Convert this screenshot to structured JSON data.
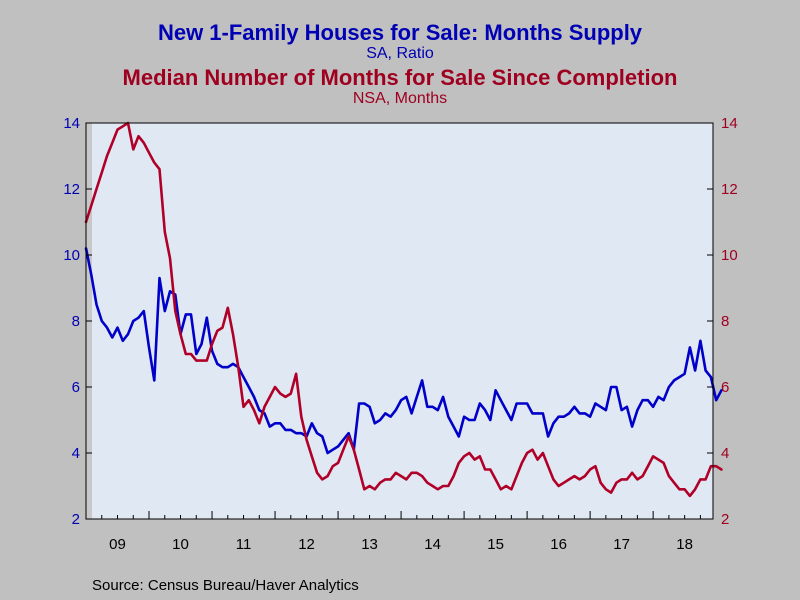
{
  "chart_data": {
    "type": "line",
    "titles": [
      {
        "text": "New 1-Family Houses for Sale: Months Supply",
        "color": "#0000b4"
      },
      {
        "text": "SA, Ratio",
        "color": "#0000b4"
      },
      {
        "text": "Median Number of Months for Sale Since Completion",
        "color": "#a00020"
      },
      {
        "text": "NSA, Months",
        "color": "#a00020"
      }
    ],
    "source": "Source:  Census Bureau/Haver Analytics",
    "x_start": 2009.0,
    "x_range": [
      2009.0,
      2018.95
    ],
    "x_tick_labels": [
      "09",
      "10",
      "11",
      "12",
      "13",
      "14",
      "15",
      "16",
      "17",
      "18"
    ],
    "y_left": {
      "range": [
        2,
        14
      ],
      "ticks": [
        2,
        4,
        6,
        8,
        10,
        12,
        14
      ],
      "color": "#0000b4"
    },
    "y_right": {
      "range": [
        2,
        14
      ],
      "ticks": [
        2,
        4,
        6,
        8,
        10,
        12,
        14
      ],
      "color": "#a00020"
    },
    "grid": false,
    "colors": {
      "plot_bg": "#e0e8f4",
      "recession_shade": "#c8c8c8",
      "frame": "#000000"
    },
    "series": [
      {
        "color": "#0000c8",
        "axis": "left",
        "frequency": "monthly",
        "values": [
          10.2,
          9.4,
          8.5,
          8.0,
          7.8,
          7.5,
          7.8,
          7.4,
          7.6,
          8.0,
          8.1,
          8.3,
          7.2,
          6.2,
          9.3,
          8.3,
          8.9,
          8.8,
          7.6,
          8.2,
          8.2,
          7.0,
          7.3,
          8.1,
          7.1,
          6.7,
          6.6,
          6.6,
          6.7,
          6.6,
          6.3,
          6.0,
          5.7,
          5.3,
          5.2,
          4.8,
          4.9,
          4.9,
          4.7,
          4.7,
          4.6,
          4.6,
          4.5,
          4.9,
          4.6,
          4.5,
          4.0,
          4.1,
          4.2,
          4.4,
          4.6,
          4.1,
          5.5,
          5.5,
          5.4,
          4.9,
          5.0,
          5.2,
          5.1,
          5.3,
          5.6,
          5.7,
          5.2,
          5.7,
          6.2,
          5.4,
          5.4,
          5.3,
          5.7,
          5.1,
          4.8,
          4.5,
          5.1,
          5.0,
          5.0,
          5.5,
          5.3,
          5.0,
          5.9,
          5.6,
          5.3,
          5.0,
          5.5,
          5.5,
          5.5,
          5.2,
          5.2,
          5.2,
          4.5,
          4.9,
          5.1,
          5.1,
          5.2,
          5.4,
          5.2,
          5.2,
          5.1,
          5.5,
          5.4,
          5.3,
          6.0,
          6.0,
          5.3,
          5.4,
          4.8,
          5.3,
          5.6,
          5.6,
          5.4,
          5.7,
          5.6,
          6.0,
          6.2,
          6.3,
          6.4,
          7.2,
          6.5,
          7.4,
          6.5,
          6.3,
          5.6,
          5.9
        ]
      },
      {
        "color": "#b00028",
        "axis": "right",
        "frequency": "monthly",
        "values": [
          11.0,
          11.5,
          12.0,
          12.5,
          13.0,
          13.4,
          13.8,
          13.9,
          14.0,
          13.2,
          13.6,
          13.4,
          13.1,
          12.8,
          12.6,
          10.7,
          9.9,
          8.3,
          7.6,
          7.0,
          7.0,
          6.8,
          6.8,
          6.8,
          7.3,
          7.7,
          7.8,
          8.4,
          7.6,
          6.6,
          5.4,
          5.6,
          5.3,
          4.9,
          5.4,
          5.7,
          6.0,
          5.8,
          5.7,
          5.8,
          6.4,
          5.1,
          4.4,
          3.9,
          3.4,
          3.2,
          3.3,
          3.6,
          3.7,
          4.1,
          4.5,
          4.1,
          3.5,
          2.9,
          3.0,
          2.9,
          3.1,
          3.2,
          3.2,
          3.4,
          3.3,
          3.2,
          3.4,
          3.4,
          3.3,
          3.1,
          3.0,
          2.9,
          3.0,
          3.0,
          3.3,
          3.7,
          3.9,
          4.0,
          3.8,
          3.9,
          3.5,
          3.5,
          3.2,
          2.9,
          3.0,
          2.9,
          3.3,
          3.7,
          4.0,
          4.1,
          3.8,
          4.0,
          3.6,
          3.2,
          3.0,
          3.1,
          3.2,
          3.3,
          3.2,
          3.3,
          3.5,
          3.6,
          3.1,
          2.9,
          2.8,
          3.1,
          3.2,
          3.2,
          3.4,
          3.2,
          3.3,
          3.6,
          3.9,
          3.8,
          3.7,
          3.3,
          3.1,
          2.9,
          2.9,
          2.7,
          2.9,
          3.2,
          3.2,
          3.6,
          3.6,
          3.5
        ]
      }
    ]
  }
}
